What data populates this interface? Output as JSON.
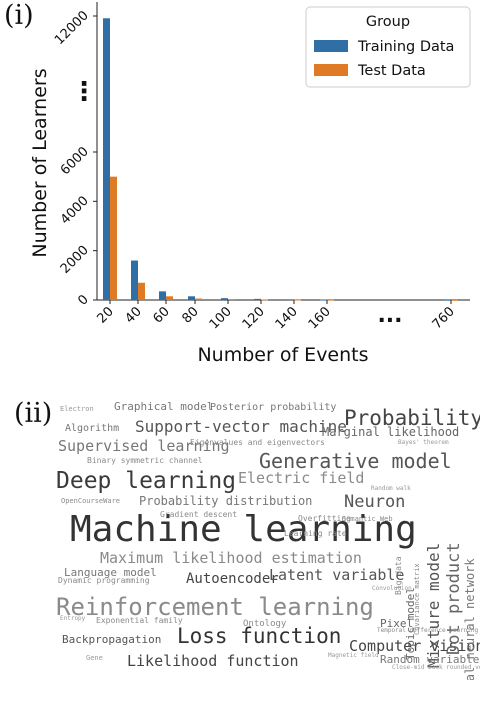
{
  "panels": {
    "top_label": "(i)",
    "bottom_label": "(ii)"
  },
  "chart_data": {
    "type": "bar",
    "title": "",
    "xlabel": "Number of Events",
    "ylabel": "Number of Learners",
    "categories": [
      "20",
      "40",
      "60",
      "80",
      "100",
      "120",
      "140",
      "160",
      "...",
      "760"
    ],
    "series": [
      {
        "name": "Training Data",
        "values": [
          11900,
          1600,
          350,
          150,
          75,
          45,
          28,
          18,
          0,
          5
        ]
      },
      {
        "name": "Test Data",
        "values": [
          5000,
          700,
          150,
          60,
          35,
          20,
          12,
          8,
          0,
          3
        ]
      }
    ],
    "yticks": [
      "0",
      "2000",
      "4000",
      "6000",
      "12000"
    ],
    "y_break_marker": "⋮",
    "x_gap_marker": "...",
    "legend": {
      "title": "Group",
      "placement": "top-right"
    },
    "grid": false,
    "colors": {
      "Training Data": "#2f6fa6",
      "Test Data": "#e07b25"
    }
  },
  "wordcloud": {
    "words": [
      {
        "text": "Machine learning",
        "shade": "#333333"
      },
      {
        "text": "Reinforcement learning",
        "shade": "#8a8a8a"
      },
      {
        "text": "Deep learning",
        "shade": "#3a3a3a"
      },
      {
        "text": "Generative model",
        "shade": "#555555"
      },
      {
        "text": "Probability",
        "shade": "#444444"
      },
      {
        "text": "Loss function",
        "shade": "#333333"
      },
      {
        "text": "Support-vector machine",
        "shade": "#555555"
      },
      {
        "text": "Supervised learning",
        "shade": "#777777"
      },
      {
        "text": "Maximum likelihood estimation",
        "shade": "#8a8a8a"
      },
      {
        "text": "Autoencoder",
        "shade": "#444444"
      },
      {
        "text": "Latent variable",
        "shade": "#555555"
      },
      {
        "text": "Likelihood function",
        "shade": "#444444"
      },
      {
        "text": "Computer vision",
        "shade": "#444444"
      },
      {
        "text": "Mixture model",
        "shade": "#555555"
      },
      {
        "text": "Dot product",
        "shade": "#666666"
      },
      {
        "text": "Electric field",
        "shade": "#8a8a8a"
      },
      {
        "text": "Neuron",
        "shade": "#555555"
      },
      {
        "text": "Artificial neural network",
        "shade": "#777777"
      },
      {
        "text": "Probability distribution",
        "shade": "#777777"
      },
      {
        "text": "Graphical model",
        "shade": "#777777"
      },
      {
        "text": "Posterior probability",
        "shade": "#777777"
      },
      {
        "text": "Marginal likelihood",
        "shade": "#666666"
      },
      {
        "text": "Algorithm",
        "shade": "#777777"
      },
      {
        "text": "Eigenvalues and eigenvectors",
        "shade": "#8a8a8a"
      },
      {
        "text": "Binary symmetric channel",
        "shade": "#8a8a8a"
      },
      {
        "text": "OpenCourseWare",
        "shade": "#8a8a8a"
      },
      {
        "text": "Overfitting",
        "shade": "#8a8a8a"
      },
      {
        "text": "Learning rate",
        "shade": "#8a8a8a"
      },
      {
        "text": "Gradient descent",
        "shade": "#8a8a8a"
      },
      {
        "text": "Semantic Web",
        "shade": "#8a8a8a"
      },
      {
        "text": "Bayes' theorem",
        "shade": "#999999"
      },
      {
        "text": "Random walk",
        "shade": "#999999"
      },
      {
        "text": "Big data",
        "shade": "#8a8a8a"
      },
      {
        "text": "Topic model",
        "shade": "#666666"
      },
      {
        "text": "Covariance matrix",
        "shade": "#8a8a8a"
      },
      {
        "text": "Convolution",
        "shade": "#999999"
      },
      {
        "text": "Language model",
        "shade": "#777777"
      },
      {
        "text": "Dynamic programming",
        "shade": "#8a8a8a"
      },
      {
        "text": "Exponential family",
        "shade": "#8a8a8a"
      },
      {
        "text": "Entropy",
        "shade": "#999999"
      },
      {
        "text": "Ontology",
        "shade": "#8a8a8a"
      },
      {
        "text": "Pixel",
        "shade": "#666666"
      },
      {
        "text": "Temporal difference learning",
        "shade": "#8a8a8a"
      },
      {
        "text": "Backpropagation",
        "shade": "#555555"
      },
      {
        "text": "Random variable",
        "shade": "#777777"
      },
      {
        "text": "Magnetic field",
        "shade": "#999999"
      },
      {
        "text": "Gene",
        "shade": "#999999"
      },
      {
        "text": "Close-mid back rounded vowel",
        "shade": "#999999"
      },
      {
        "text": "Electron",
        "shade": "#999999"
      }
    ]
  }
}
